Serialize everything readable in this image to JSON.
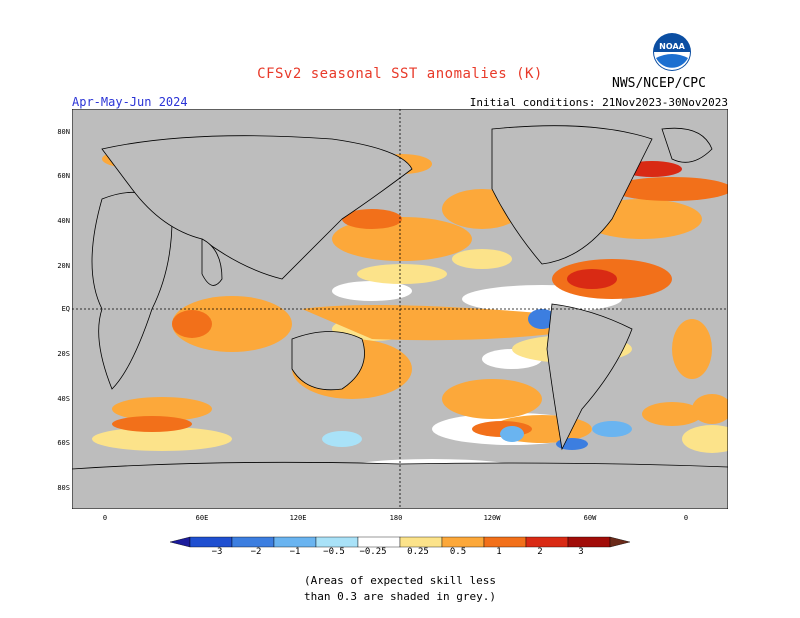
{
  "title": "CFSv2 seasonal SST anomalies (K)",
  "agency": "NWS/NCEP/CPC",
  "logo_text": "NOAA",
  "season": "Apr-May-Jun 2024",
  "initial_conditions": "Initial conditions: 21Nov2023-30Nov2023",
  "lat_labels": [
    "80N",
    "60N",
    "40N",
    "20N",
    "EQ",
    "20S",
    "40S",
    "60S",
    "80S"
  ],
  "lon_labels": [
    "0",
    "60E",
    "120E",
    "180",
    "120W",
    "60W",
    "0"
  ],
  "colorbar": {
    "labels": [
      "−3",
      "−2",
      "−1",
      "−0.5",
      "−0.25",
      "0.25",
      "0.5",
      "1",
      "2",
      "3"
    ],
    "colors": [
      "#1c1c9c",
      "#1f4fd0",
      "#3c7ee0",
      "#6ab4f0",
      "#a9e2f8",
      "#ffffff",
      "#fce38a",
      "#fca83a",
      "#f2701a",
      "#d92a14",
      "#a10c08",
      "#6b2a1a"
    ]
  },
  "note_line1": "(Areas of expected skill less",
  "note_line2": "than 0.3 are shaded in grey.)",
  "colors": {
    "title": "#e83a2a",
    "season": "#2b34d6",
    "grey_skill": "#bdbdbd",
    "ocean_white": "#ffffff"
  }
}
